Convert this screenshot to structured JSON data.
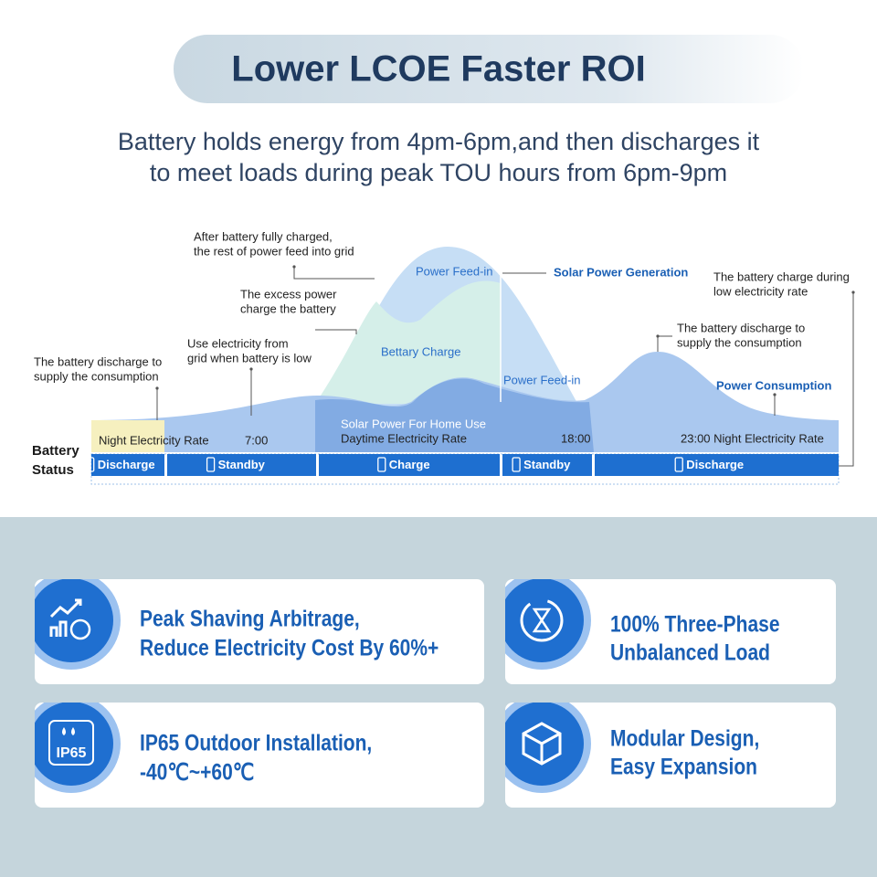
{
  "header": {
    "title": "Lower LCOE Faster ROI",
    "subtitle": [
      "Battery holds energy from 4pm-6pm,and then discharges it",
      "to meet loads during peak TOU hours from 6pm-9pm"
    ]
  },
  "diagram": {
    "annotations": [
      {
        "lines": [
          "After battery fully charged,",
          "the rest of power feed into grid"
        ]
      },
      {
        "lines": [
          "The excess power",
          "charge the battery"
        ]
      },
      {
        "lines": [
          "Use electricity from",
          "grid when battery is low"
        ]
      },
      {
        "lines": [
          "The battery discharge to",
          "supply the consumption"
        ]
      },
      {
        "lines": [
          "The battery charge during",
          "low electricity rate"
        ]
      },
      {
        "lines": [
          "The battery discharge to",
          "supply the consumption"
        ]
      }
    ],
    "area_labels": [
      "Power Feed-in",
      "Solar Power Generation",
      "Bettary Charge",
      "Power Feed-in",
      "Power Consumption",
      "Solar Power For Home Use"
    ],
    "time_labels": [
      "Night Electricity Rate",
      "7:00",
      "Daytime Electricity Rate",
      "18:00",
      "23:00 Night Electricity Rate"
    ],
    "status_label": [
      "Battery",
      "Status"
    ],
    "status_segments": [
      "Discharge",
      "Standby",
      "Charge",
      "Standby",
      "Discharge"
    ]
  },
  "features": [
    {
      "lines": [
        "Peak Shaving Arbitrage,",
        "Reduce Electricity Cost By 60%+"
      ]
    },
    {
      "lines": [
        "100% Three-Phase",
        "Unbalanced Load"
      ]
    },
    {
      "lines": [
        "IP65 Outdoor Installation,",
        "-40℃~+60℃"
      ],
      "icon_label": "IP65"
    },
    {
      "lines": [
        "Modular Design,",
        "Easy Expansion"
      ]
    }
  ]
}
